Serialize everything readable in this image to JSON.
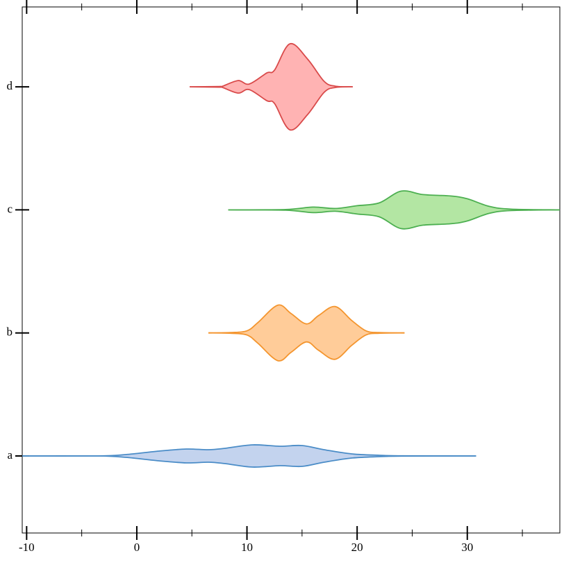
{
  "chart_data": {
    "type": "violin",
    "categories": [
      "a",
      "b",
      "c",
      "d"
    ],
    "xlim": [
      -10.4,
      38.4
    ],
    "xticks": [
      -10,
      0,
      10,
      20,
      30
    ],
    "xminor_ticks": [
      -5,
      5,
      15,
      25,
      35
    ],
    "series": [
      {
        "name": "a",
        "color": "#4a8cc7",
        "fill": "#c3d3ee",
        "x": [
          -10.4,
          -3.5,
          -1,
          2,
          4.5,
          6.5,
          8,
          10.5,
          13,
          15,
          17,
          19.5,
          22,
          24,
          30.8
        ],
        "density": [
          0,
          0,
          2,
          7,
          10,
          9,
          11,
          16,
          14,
          15,
          9,
          3,
          1,
          0.2,
          0
        ]
      },
      {
        "name": "b",
        "color": "#f4952e",
        "fill": "#ffcc99",
        "x": [
          6.5,
          8.5,
          10,
          11,
          12.8,
          14,
          15.4,
          16.5,
          18,
          19.5,
          20.8,
          22,
          24.3
        ],
        "density": [
          0,
          0.5,
          3,
          15,
          40,
          28,
          13,
          25,
          38,
          18,
          3,
          0.5,
          0
        ]
      },
      {
        "name": "c",
        "color": "#4caf50",
        "fill": "#b3e6a3",
        "x": [
          8.3,
          13.5,
          16,
          18,
          20,
          22,
          24,
          26,
          28.5,
          30,
          32,
          34,
          38.4
        ],
        "density": [
          0,
          0.5,
          4,
          2,
          6,
          10,
          27,
          22,
          20,
          16,
          5,
          1,
          0
        ]
      },
      {
        "name": "d",
        "color": "#d94a4a",
        "fill": "#ffb3b3",
        "x": [
          4.8,
          7.5,
          7.8,
          9.2,
          10.2,
          11.8,
          12.5,
          13.9,
          15.5,
          17,
          18,
          19.6
        ],
        "density": [
          0,
          0.5,
          1,
          9,
          4,
          20,
          24,
          62,
          40,
          8,
          1,
          0
        ]
      }
    ]
  }
}
